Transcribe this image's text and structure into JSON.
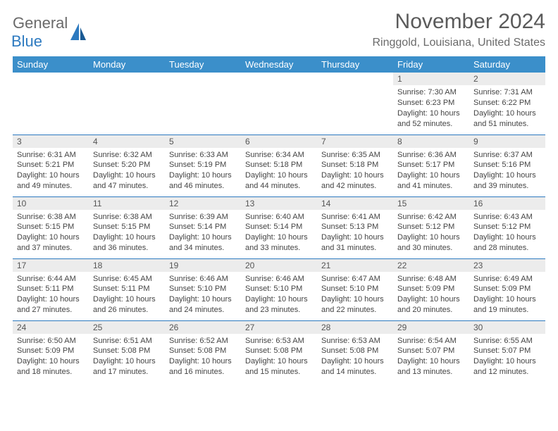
{
  "brand": {
    "part1": "General",
    "part2": "Blue"
  },
  "title": "November 2024",
  "location": "Ringgold, Louisiana, United States",
  "colors": {
    "header_bg": "#3b8fca",
    "header_text": "#ffffff",
    "daynum_bg": "#ececec",
    "border": "#2d7ac0",
    "brand_gray": "#6a6a6a",
    "brand_blue": "#2d7ac0"
  },
  "day_headers": [
    "Sunday",
    "Monday",
    "Tuesday",
    "Wednesday",
    "Thursday",
    "Friday",
    "Saturday"
  ],
  "weeks": [
    [
      null,
      null,
      null,
      null,
      null,
      {
        "n": "1",
        "sr": "Sunrise: 7:30 AM",
        "ss": "Sunset: 6:23 PM",
        "dl1": "Daylight: 10 hours",
        "dl2": "and 52 minutes."
      },
      {
        "n": "2",
        "sr": "Sunrise: 7:31 AM",
        "ss": "Sunset: 6:22 PM",
        "dl1": "Daylight: 10 hours",
        "dl2": "and 51 minutes."
      }
    ],
    [
      {
        "n": "3",
        "sr": "Sunrise: 6:31 AM",
        "ss": "Sunset: 5:21 PM",
        "dl1": "Daylight: 10 hours",
        "dl2": "and 49 minutes."
      },
      {
        "n": "4",
        "sr": "Sunrise: 6:32 AM",
        "ss": "Sunset: 5:20 PM",
        "dl1": "Daylight: 10 hours",
        "dl2": "and 47 minutes."
      },
      {
        "n": "5",
        "sr": "Sunrise: 6:33 AM",
        "ss": "Sunset: 5:19 PM",
        "dl1": "Daylight: 10 hours",
        "dl2": "and 46 minutes."
      },
      {
        "n": "6",
        "sr": "Sunrise: 6:34 AM",
        "ss": "Sunset: 5:18 PM",
        "dl1": "Daylight: 10 hours",
        "dl2": "and 44 minutes."
      },
      {
        "n": "7",
        "sr": "Sunrise: 6:35 AM",
        "ss": "Sunset: 5:18 PM",
        "dl1": "Daylight: 10 hours",
        "dl2": "and 42 minutes."
      },
      {
        "n": "8",
        "sr": "Sunrise: 6:36 AM",
        "ss": "Sunset: 5:17 PM",
        "dl1": "Daylight: 10 hours",
        "dl2": "and 41 minutes."
      },
      {
        "n": "9",
        "sr": "Sunrise: 6:37 AM",
        "ss": "Sunset: 5:16 PM",
        "dl1": "Daylight: 10 hours",
        "dl2": "and 39 minutes."
      }
    ],
    [
      {
        "n": "10",
        "sr": "Sunrise: 6:38 AM",
        "ss": "Sunset: 5:15 PM",
        "dl1": "Daylight: 10 hours",
        "dl2": "and 37 minutes."
      },
      {
        "n": "11",
        "sr": "Sunrise: 6:38 AM",
        "ss": "Sunset: 5:15 PM",
        "dl1": "Daylight: 10 hours",
        "dl2": "and 36 minutes."
      },
      {
        "n": "12",
        "sr": "Sunrise: 6:39 AM",
        "ss": "Sunset: 5:14 PM",
        "dl1": "Daylight: 10 hours",
        "dl2": "and 34 minutes."
      },
      {
        "n": "13",
        "sr": "Sunrise: 6:40 AM",
        "ss": "Sunset: 5:14 PM",
        "dl1": "Daylight: 10 hours",
        "dl2": "and 33 minutes."
      },
      {
        "n": "14",
        "sr": "Sunrise: 6:41 AM",
        "ss": "Sunset: 5:13 PM",
        "dl1": "Daylight: 10 hours",
        "dl2": "and 31 minutes."
      },
      {
        "n": "15",
        "sr": "Sunrise: 6:42 AM",
        "ss": "Sunset: 5:12 PM",
        "dl1": "Daylight: 10 hours",
        "dl2": "and 30 minutes."
      },
      {
        "n": "16",
        "sr": "Sunrise: 6:43 AM",
        "ss": "Sunset: 5:12 PM",
        "dl1": "Daylight: 10 hours",
        "dl2": "and 28 minutes."
      }
    ],
    [
      {
        "n": "17",
        "sr": "Sunrise: 6:44 AM",
        "ss": "Sunset: 5:11 PM",
        "dl1": "Daylight: 10 hours",
        "dl2": "and 27 minutes."
      },
      {
        "n": "18",
        "sr": "Sunrise: 6:45 AM",
        "ss": "Sunset: 5:11 PM",
        "dl1": "Daylight: 10 hours",
        "dl2": "and 26 minutes."
      },
      {
        "n": "19",
        "sr": "Sunrise: 6:46 AM",
        "ss": "Sunset: 5:10 PM",
        "dl1": "Daylight: 10 hours",
        "dl2": "and 24 minutes."
      },
      {
        "n": "20",
        "sr": "Sunrise: 6:46 AM",
        "ss": "Sunset: 5:10 PM",
        "dl1": "Daylight: 10 hours",
        "dl2": "and 23 minutes."
      },
      {
        "n": "21",
        "sr": "Sunrise: 6:47 AM",
        "ss": "Sunset: 5:10 PM",
        "dl1": "Daylight: 10 hours",
        "dl2": "and 22 minutes."
      },
      {
        "n": "22",
        "sr": "Sunrise: 6:48 AM",
        "ss": "Sunset: 5:09 PM",
        "dl1": "Daylight: 10 hours",
        "dl2": "and 20 minutes."
      },
      {
        "n": "23",
        "sr": "Sunrise: 6:49 AM",
        "ss": "Sunset: 5:09 PM",
        "dl1": "Daylight: 10 hours",
        "dl2": "and 19 minutes."
      }
    ],
    [
      {
        "n": "24",
        "sr": "Sunrise: 6:50 AM",
        "ss": "Sunset: 5:09 PM",
        "dl1": "Daylight: 10 hours",
        "dl2": "and 18 minutes."
      },
      {
        "n": "25",
        "sr": "Sunrise: 6:51 AM",
        "ss": "Sunset: 5:08 PM",
        "dl1": "Daylight: 10 hours",
        "dl2": "and 17 minutes."
      },
      {
        "n": "26",
        "sr": "Sunrise: 6:52 AM",
        "ss": "Sunset: 5:08 PM",
        "dl1": "Daylight: 10 hours",
        "dl2": "and 16 minutes."
      },
      {
        "n": "27",
        "sr": "Sunrise: 6:53 AM",
        "ss": "Sunset: 5:08 PM",
        "dl1": "Daylight: 10 hours",
        "dl2": "and 15 minutes."
      },
      {
        "n": "28",
        "sr": "Sunrise: 6:53 AM",
        "ss": "Sunset: 5:08 PM",
        "dl1": "Daylight: 10 hours",
        "dl2": "and 14 minutes."
      },
      {
        "n": "29",
        "sr": "Sunrise: 6:54 AM",
        "ss": "Sunset: 5:07 PM",
        "dl1": "Daylight: 10 hours",
        "dl2": "and 13 minutes."
      },
      {
        "n": "30",
        "sr": "Sunrise: 6:55 AM",
        "ss": "Sunset: 5:07 PM",
        "dl1": "Daylight: 10 hours",
        "dl2": "and 12 minutes."
      }
    ]
  ]
}
